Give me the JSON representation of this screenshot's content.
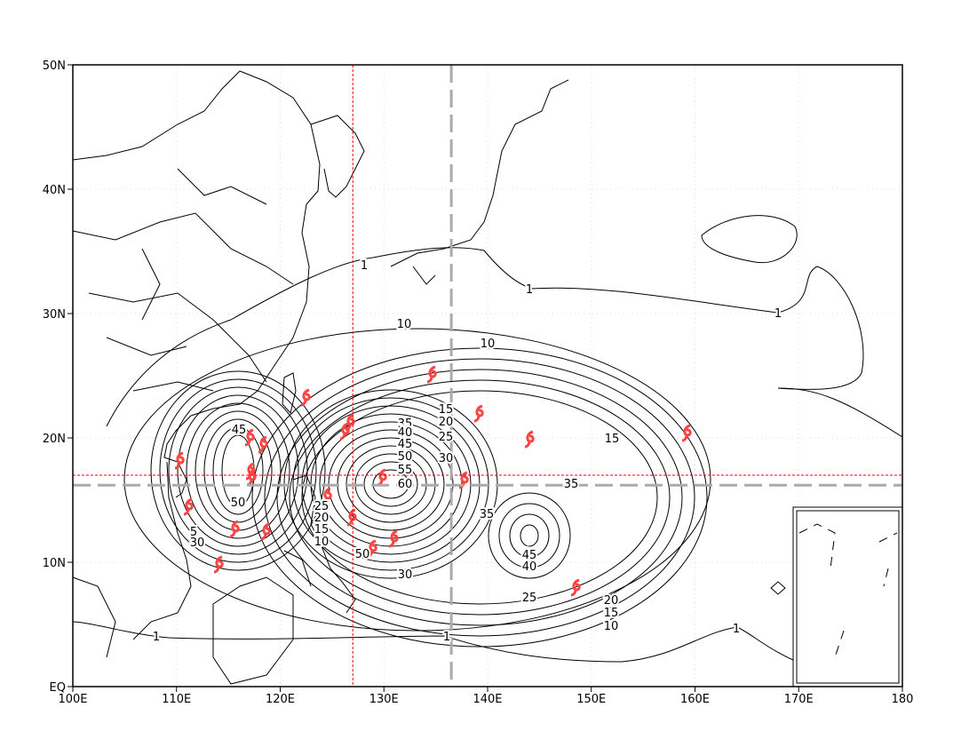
{
  "map": {
    "xlim": [
      100,
      180
    ],
    "ylim": [
      0,
      50
    ],
    "xticks": [
      {
        "value": 100,
        "label": "100E"
      },
      {
        "value": 110,
        "label": "110E"
      },
      {
        "value": 120,
        "label": "120E"
      },
      {
        "value": 130,
        "label": "130E"
      },
      {
        "value": 140,
        "label": "140E"
      },
      {
        "value": 150,
        "label": "150E"
      },
      {
        "value": 160,
        "label": "160E"
      },
      {
        "value": 170,
        "label": "170E"
      },
      180
    ],
    "yticks": [
      {
        "value": 0,
        "label": "EQ"
      },
      {
        "value": 10,
        "label": "10N"
      },
      {
        "value": 20,
        "label": "20N"
      },
      {
        "value": 30,
        "label": "30N"
      },
      {
        "value": 40,
        "label": "40N"
      },
      {
        "value": 50,
        "label": "50N"
      }
    ],
    "red_crosshair": {
      "lon": 127,
      "lat": 17,
      "color": "#ff0000"
    },
    "gray_crosshair": {
      "lon": 136.5,
      "lat": 16.2,
      "color": "#aaaaaa"
    },
    "contour_labels": [
      1,
      1,
      1,
      1,
      1,
      1,
      10,
      10,
      10,
      15,
      15,
      15,
      20,
      20,
      25,
      25,
      25,
      30,
      30,
      30,
      35,
      35,
      35,
      40,
      40,
      45,
      45,
      45,
      50,
      50,
      50,
      55,
      60,
      20,
      15,
      10,
      5
    ]
  }
}
